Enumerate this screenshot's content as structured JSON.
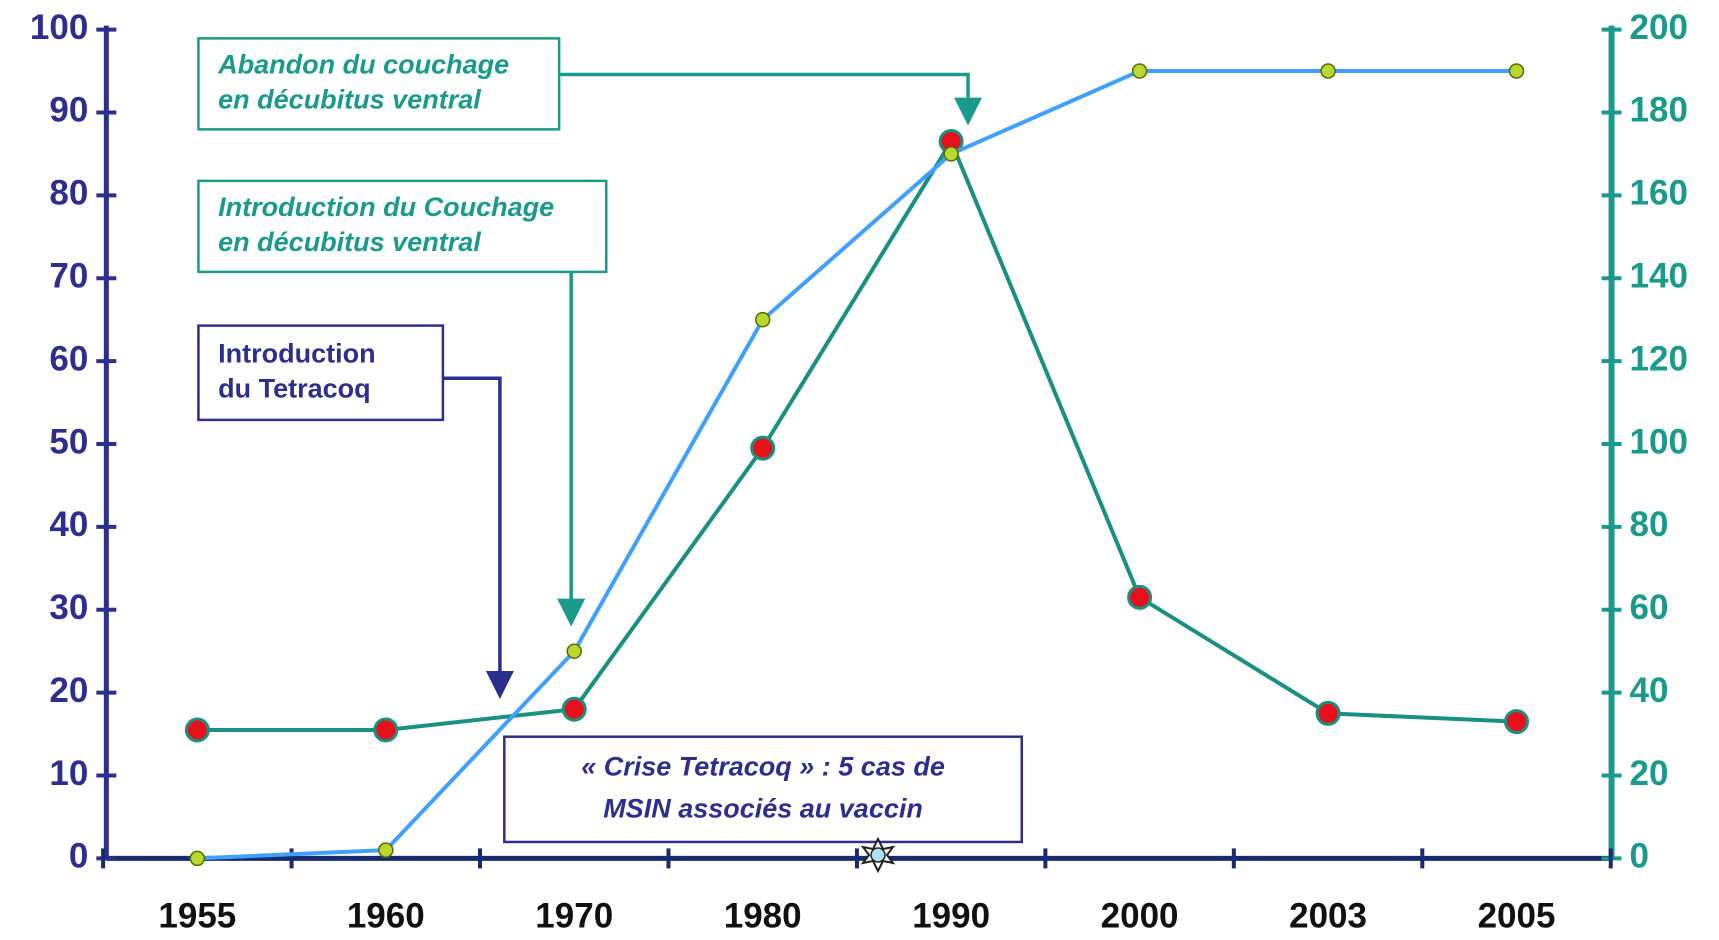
{
  "chart_data": {
    "type": "line",
    "categories": [
      "1955",
      "1960",
      "1970",
      "1980",
      "1990",
      "2000",
      "2003",
      "2005"
    ],
    "series": [
      {
        "color": "#3fa0ff",
        "values": [
          0,
          1,
          25,
          65,
          85,
          95,
          95,
          95
        ]
      },
      {
        "color": "#1a9080",
        "axis": "y2",
        "values": [
          31,
          31,
          36,
          99,
          173,
          63,
          35,
          33
        ]
      }
    ],
    "ylim": [
      0,
      100
    ],
    "yticks": [
      0,
      10,
      20,
      30,
      40,
      50,
      60,
      70,
      80,
      90,
      100
    ],
    "y2lim": [
      0,
      200
    ],
    "y2ticks": [
      0,
      20,
      40,
      60,
      80,
      100,
      120,
      140,
      160,
      180,
      200
    ],
    "grid": false,
    "annotations": [
      {
        "lines": [
          "Abandon du couchage",
          "en décubitus ventral"
        ]
      },
      {
        "lines": [
          "Introduction du Couchage",
          "en décubitus ventral"
        ]
      },
      {
        "lines": [
          "Introduction",
          "du Tetracoq"
        ]
      },
      {
        "lines": [
          "« Crise Tetracoq » : 5 cas de",
          "MSIN associés au vaccin"
        ]
      }
    ]
  }
}
